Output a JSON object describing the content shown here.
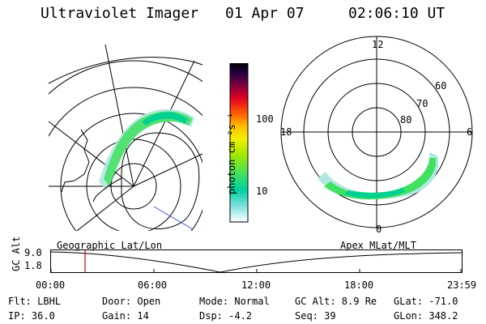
{
  "header": {
    "title": "Ultraviolet Imager",
    "date": "01 Apr 07",
    "time": "02:06:10 UT"
  },
  "colorbar": {
    "label": "photon cm⁻²s⁻¹",
    "ticks": [
      "100",
      "10"
    ]
  },
  "map_labels": {
    "left": "Geographic Lat/Lon",
    "right": "Apex MLat/MLT"
  },
  "polar": {
    "mlt_labels": [
      "12",
      "18",
      "6",
      "0"
    ],
    "lat_labels": [
      "60",
      "70",
      "80"
    ]
  },
  "altitude_panel": {
    "axis_title": "GC Alt",
    "y_ticks": [
      "9.0",
      "1.8"
    ],
    "x_ticks": [
      "00:00",
      "06:00",
      "12:00",
      "18:00",
      "23:59"
    ]
  },
  "info": {
    "filter": "Flt: LBHL",
    "ip": "IP: 36.0",
    "door": "Door: Open",
    "gain": "Gain: 14",
    "mode": "Mode: Normal",
    "dsp": "Dsp:   -4.2",
    "gc_alt": "GC Alt: 8.9 Re",
    "seq": "Seq: 39",
    "glat": "GLat: -71.0",
    "glon": "GLon: 348.2"
  },
  "colors": {
    "current_time_marker": "#d00000",
    "aurora_bright": "#00d090",
    "aurora_green": "#40e060",
    "aurora_dim": "#b0e8e0"
  }
}
